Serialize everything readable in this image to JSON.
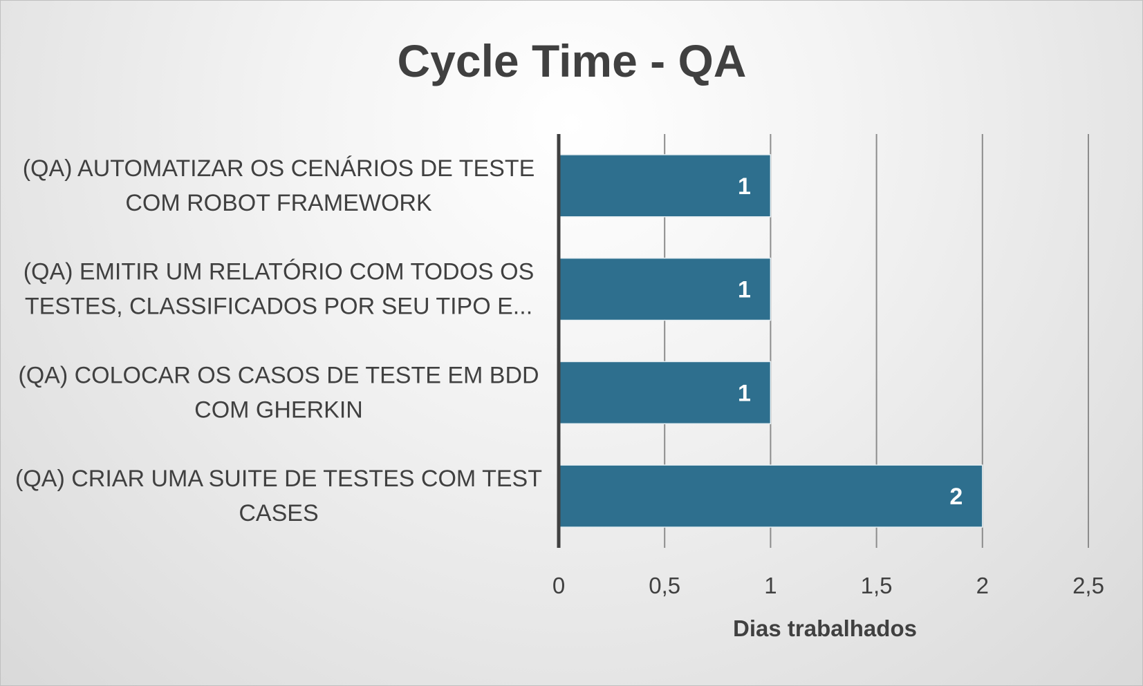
{
  "chart_data": {
    "type": "bar",
    "orientation": "horizontal",
    "title": "Cycle Time - QA",
    "xlabel": "Dias trabalhados",
    "ylabel": "",
    "categories": [
      [
        "(QA) AUTOMATIZAR OS CENÁRIOS DE TESTE",
        "COM ROBOT FRAMEWORK"
      ],
      [
        "(QA) EMITIR UM RELATÓRIO COM TODOS OS",
        "TESTES, CLASSIFICADOS POR SEU TIPO E..."
      ],
      [
        "(QA) COLOCAR OS CASOS DE TESTE EM BDD",
        "COM GHERKIN"
      ],
      [
        "(QA) CRIAR UMA SUITE DE TESTES COM TEST",
        "CASES"
      ]
    ],
    "values": [
      1,
      1,
      1,
      2
    ],
    "data_labels": [
      "1",
      "1",
      "1",
      "2"
    ],
    "xlim": [
      0,
      2.5
    ],
    "ticks": [
      0,
      0.5,
      1,
      1.5,
      2,
      2.5
    ],
    "tick_labels": [
      "0",
      "0,5",
      "1",
      "1,5",
      "2",
      "2,5"
    ],
    "grid": true,
    "legend": "none",
    "bar_color": "#2e6f8e"
  }
}
